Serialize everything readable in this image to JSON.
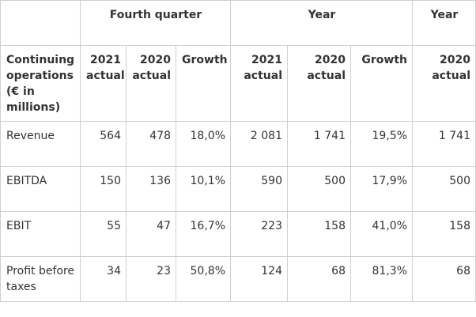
{
  "group_headers": {
    "fourth_quarter": "Fourth quarter",
    "year": "Year",
    "year_prior": "Year"
  },
  "column_headers": {
    "row_label": "Continuing operations (€ in millions)",
    "q_2021": "2021 actual",
    "q_2020": "2020 actual",
    "q_growth": "Growth",
    "y_2021": "2021 actual",
    "y_2020": "2020 actual",
    "y_growth": "Growth",
    "prior_2020": "2020 actual"
  },
  "rows": [
    {
      "label": "Revenue",
      "q_2021": "564",
      "q_2020": "478",
      "q_growth": "18,0%",
      "y_2021": "2 081",
      "y_2020": "1 741",
      "y_growth": "19,5%",
      "prior_2020": "1 741"
    },
    {
      "label": "EBITDA",
      "q_2021": "150",
      "q_2020": "136",
      "q_growth": "10,1%",
      "y_2021": "590",
      "y_2020": "500",
      "y_growth": "17,9%",
      "prior_2020": "500"
    },
    {
      "label": "EBIT",
      "q_2021": "55",
      "q_2020": "47",
      "q_growth": "16,7%",
      "y_2021": "223",
      "y_2020": "158",
      "y_growth": "41,0%",
      "prior_2020": "158"
    },
    {
      "label": "Profit before taxes",
      "q_2021": "34",
      "q_2020": "23",
      "q_growth": "50,8%",
      "y_2021": "124",
      "y_2020": "68",
      "y_growth": "81,3%",
      "prior_2020": "68"
    }
  ]
}
